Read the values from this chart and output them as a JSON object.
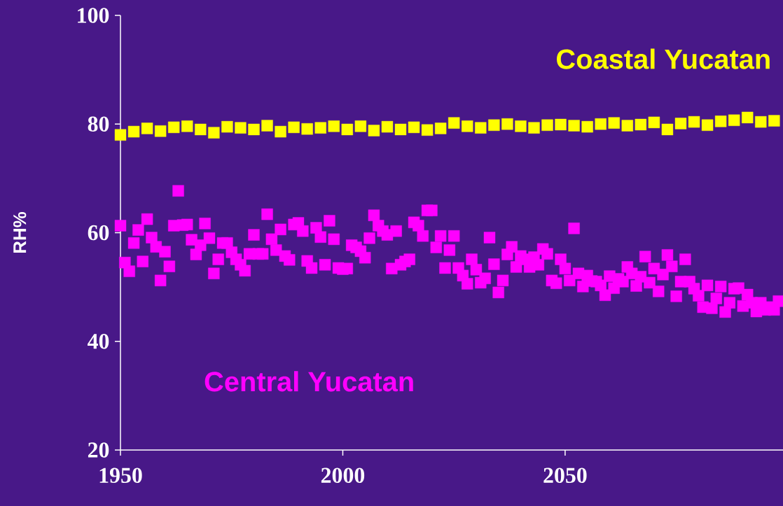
{
  "chart_data": {
    "type": "scatter",
    "ylabel": "RH%",
    "xlim": [
      1950,
      2099
    ],
    "xticks": [
      1950,
      2000,
      2050
    ],
    "ylim": [
      20,
      100
    ],
    "yticks": [
      20,
      40,
      60,
      80,
      100
    ],
    "grid": false,
    "marker": "square",
    "series": [
      {
        "name": "Coastal Yucatan",
        "color": "#ffff00",
        "x": [
          1950,
          1953,
          1956,
          1959,
          1962,
          1965,
          1968,
          1971,
          1974,
          1977,
          1980,
          1983,
          1986,
          1989,
          1992,
          1995,
          1998,
          2001,
          2004,
          2007,
          2010,
          2013,
          2016,
          2019,
          2022,
          2025,
          2028,
          2031,
          2034,
          2037,
          2040,
          2043,
          2046,
          2049,
          2052,
          2055,
          2058,
          2061,
          2064,
          2067,
          2070,
          2073,
          2076,
          2079,
          2082,
          2085,
          2088,
          2091,
          2094,
          2097
        ],
        "values": [
          78.0,
          78.6,
          79.2,
          78.7,
          79.4,
          79.6,
          79.0,
          78.4,
          79.5,
          79.3,
          79.0,
          79.7,
          78.6,
          79.4,
          79.1,
          79.3,
          79.6,
          79.0,
          79.6,
          78.8,
          79.5,
          79.0,
          79.4,
          78.9,
          79.2,
          80.2,
          79.6,
          79.3,
          79.8,
          80.0,
          79.6,
          79.3,
          79.8,
          79.9,
          79.7,
          79.5,
          80.0,
          80.2,
          79.7,
          79.9,
          80.3,
          79.0,
          80.1,
          80.4,
          79.8,
          80.5,
          80.7,
          81.2,
          80.4,
          80.6
        ]
      },
      {
        "name": "Central Yucatan",
        "color": "#ff00ff",
        "x": [
          1950,
          1951,
          1952,
          1953,
          1954,
          1955,
          1956,
          1957,
          1958,
          1959,
          1960,
          1961,
          1962,
          1963,
          1964,
          1965,
          1966,
          1967,
          1968,
          1969,
          1970,
          1971,
          1972,
          1973,
          1974,
          1975,
          1976,
          1977,
          1978,
          1979,
          1980,
          1981,
          1982,
          1983,
          1984,
          1985,
          1986,
          1987,
          1988,
          1989,
          1990,
          1991,
          1992,
          1993,
          1994,
          1995,
          1996,
          1997,
          1998,
          1999,
          2000,
          2001,
          2002,
          2003,
          2004,
          2005,
          2006,
          2007,
          2008,
          2009,
          2010,
          2011,
          2012,
          2013,
          2014,
          2015,
          2016,
          2017,
          2018,
          2019,
          2020,
          2021,
          2022,
          2023,
          2024,
          2025,
          2026,
          2027,
          2028,
          2029,
          2030,
          2031,
          2032,
          2033,
          2034,
          2035,
          2036,
          2037,
          2038,
          2039,
          2040,
          2041,
          2042,
          2043,
          2044,
          2045,
          2046,
          2047,
          2048,
          2049,
          2050,
          2051,
          2052,
          2053,
          2054,
          2055,
          2056,
          2057,
          2058,
          2059,
          2060,
          2061,
          2062,
          2063,
          2064,
          2065,
          2066,
          2067,
          2068,
          2069,
          2070,
          2071,
          2072,
          2073,
          2074,
          2075,
          2076,
          2077,
          2078,
          2079,
          2080,
          2081,
          2082,
          2083,
          2084,
          2085,
          2086,
          2087,
          2088,
          2089,
          2090,
          2091,
          2092,
          2093,
          2094,
          2095,
          2096,
          2097,
          2098
        ],
        "values": [
          61.3,
          54.5,
          52.9,
          58.1,
          60.5,
          54.7,
          62.5,
          59.1,
          57.4,
          51.2,
          56.5,
          53.8,
          61.3,
          67.7,
          61.4,
          61.5,
          58.7,
          56.0,
          57.7,
          61.7,
          59.0,
          52.5,
          55.1,
          58.1,
          58.1,
          56.4,
          55.1,
          54.1,
          53.0,
          56.1,
          59.6,
          56.1,
          56.1,
          63.4,
          58.8,
          56.8,
          60.6,
          55.7,
          55.0,
          61.5,
          61.8,
          60.3,
          54.8,
          53.5,
          60.9,
          59.2,
          54.1,
          62.2,
          58.8,
          53.5,
          53.3,
          53.4,
          57.7,
          57.3,
          56.6,
          55.4,
          59.0,
          63.2,
          61.3,
          60.3,
          59.6,
          53.4,
          60.3,
          54.1,
          54.7,
          55.1,
          61.9,
          61.3,
          59.4,
          64.1,
          64.1,
          57.3,
          59.4,
          53.5,
          56.8,
          59.4,
          53.5,
          52.1,
          50.6,
          55.1,
          53.2,
          50.8,
          51.6,
          59.1,
          54.2,
          49.0,
          51.2,
          56.0,
          57.4,
          53.7,
          55.7,
          55.1,
          53.7,
          55.5,
          54.1,
          57.0,
          56.1,
          51.2,
          50.7,
          55.1,
          53.4,
          51.2,
          60.8,
          52.5,
          50.1,
          52.1,
          51.1,
          51.0,
          50.3,
          48.5,
          52.0,
          49.8,
          51.5,
          51.0,
          53.7,
          52.5,
          50.2,
          51.9,
          55.6,
          50.8,
          53.4,
          49.2,
          52.3,
          55.9,
          53.8,
          48.3,
          51.0,
          55.1,
          51.0,
          49.7,
          48.4,
          46.3,
          50.3,
          46.1,
          47.9,
          50.1,
          45.4,
          47.1,
          49.7,
          49.8,
          46.5,
          48.6,
          47.1,
          45.5,
          47.1,
          45.8,
          46.3,
          45.8,
          47.4
        ]
      }
    ]
  }
}
